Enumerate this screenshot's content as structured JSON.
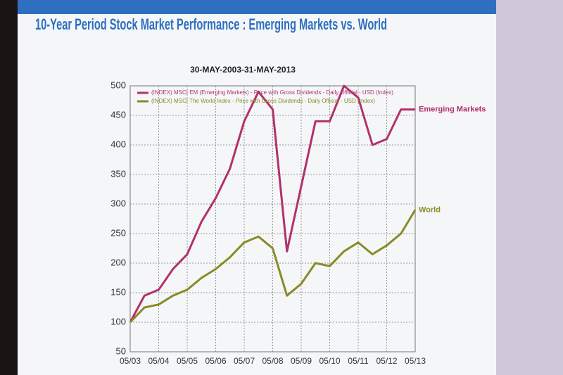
{
  "chart_data": {
    "type": "line",
    "title": "10-Year Period Stock Market Performance : Emerging Markets vs. World",
    "subtitle": "30-MAY-2003-31-MAY-2013",
    "x": [
      "05/03",
      null,
      "05/04",
      null,
      "05/05",
      null,
      "05/06",
      null,
      "05/07",
      null,
      "05/08",
      null,
      "05/09",
      null,
      "05/10",
      null,
      "05/11",
      null,
      "05/12",
      null,
      "05/13"
    ],
    "series": [
      {
        "name": "(INDEX) MSCI EM (Emerging Markets) - Price with Gross Dividends - Daily Official - USD (Index)",
        "color": "#b3306c",
        "values": [
          100,
          145,
          155,
          190,
          215,
          270,
          310,
          360,
          440,
          490,
          460,
          220,
          330,
          440,
          440,
          500,
          480,
          400,
          410,
          460,
          460
        ]
      },
      {
        "name": "(INDEX) MSCI The World Index - Price with Gross Dividends - Daily Official - USD (Index)",
        "color": "#8a8a26",
        "values": [
          100,
          125,
          130,
          145,
          155,
          175,
          190,
          210,
          235,
          245,
          225,
          145,
          165,
          200,
          195,
          220,
          235,
          215,
          230,
          250,
          290
        ]
      }
    ],
    "annotations": [
      "Emerging Markets",
      "World"
    ],
    "ylim": [
      50,
      500
    ],
    "yticks": [
      50,
      100,
      150,
      200,
      250,
      300,
      350,
      400,
      450,
      500
    ],
    "grid": true
  }
}
